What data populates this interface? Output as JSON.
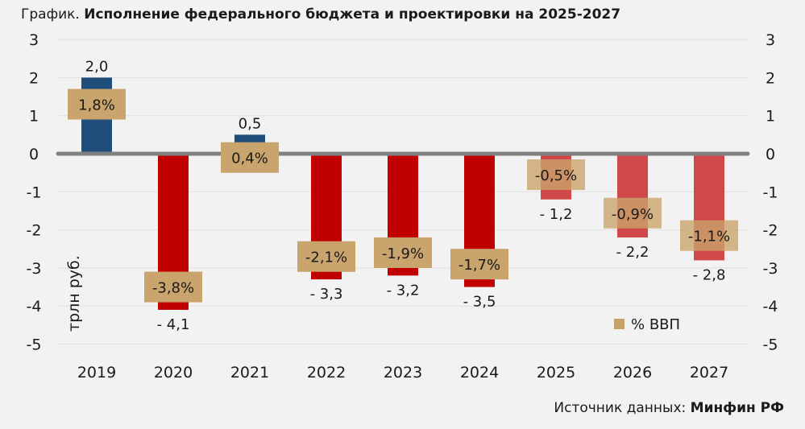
{
  "title_prefix": "График.",
  "title_main": "Исполнение федерального бюджета и проектировки на 2025-2027",
  "source_prefix": "Источник данных:",
  "source_name": "Минфин РФ",
  "chart_data": {
    "type": "bar",
    "title": "Исполнение федерального бюджета и проектировки на 2025-2027",
    "ylabel": "трлн руб.",
    "ylim": [
      -5,
      3
    ],
    "yticks": [
      3,
      2,
      1,
      0,
      -1,
      -2,
      -3,
      -4,
      -5
    ],
    "categories": [
      "2019",
      "2020",
      "2021",
      "2022",
      "2023",
      "2024",
      "2025",
      "2026",
      "2027"
    ],
    "values": [
      2.0,
      -4.1,
      0.5,
      -3.3,
      -3.2,
      -3.5,
      -1.2,
      -2.2,
      -2.8
    ],
    "value_labels": [
      "2,0",
      "- 4,1",
      "0,5",
      "- 3,3",
      "- 3,2",
      "- 3,5",
      "- 1,2",
      "- 2,2",
      "- 2,8"
    ],
    "gdp_pct_labels": [
      "1,8%",
      "-3,8%",
      "0,4%",
      "-2,1%",
      "-1,9%",
      "-1,7%",
      "-0,5%",
      "-0,9%",
      "-1,1%"
    ],
    "gdp_pct": [
      1.8,
      -3.8,
      0.4,
      -2.1,
      -1.9,
      -1.7,
      -0.5,
      -0.9,
      -1.1
    ],
    "forecast": [
      false,
      false,
      false,
      false,
      false,
      false,
      true,
      true,
      true
    ],
    "legend": [
      {
        "label": "% ВВП",
        "color": "#c4a26a"
      }
    ],
    "legend_position": "bottom-right",
    "grid": true,
    "colors": {
      "surplus": "#1f4e7a",
      "deficit": "#c00000",
      "forecast": "#d04848",
      "pct_box": "#c9a46c"
    }
  }
}
